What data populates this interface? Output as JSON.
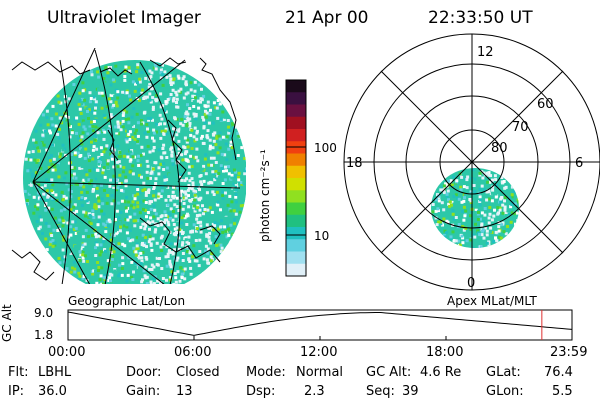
{
  "header": {
    "instrument": "Ultraviolet Imager",
    "date": "21 Apr 00",
    "time": "22:33:50 UT"
  },
  "colorbar": {
    "unit_label": "photon cm⁻²s⁻¹",
    "ticks": [
      "100",
      "10"
    ],
    "colors": [
      "#1a0a1a",
      "#3a1040",
      "#6a1040",
      "#a01020",
      "#d02020",
      "#f04010",
      "#f08000",
      "#f0c000",
      "#d0e000",
      "#90e020",
      "#40d040",
      "#20c080",
      "#20c0c0",
      "#60d0e0",
      "#a0e0f0",
      "#e0f0f8"
    ]
  },
  "polar": {
    "mlt_labels": {
      "top": "12",
      "left": "18",
      "right": "6",
      "bottom": "0"
    },
    "lat_labels": [
      "60",
      "70",
      "80"
    ]
  },
  "maps": {
    "left_caption": "Geographic Lat/Lon",
    "right_caption": "Apex MLat/MLT"
  },
  "timeline": {
    "axis_label": "GC Alt",
    "y_ticks": [
      "9.0",
      "1.8"
    ],
    "x_ticks": [
      "00:00",
      "06:00",
      "12:00",
      "18:00",
      "23:59"
    ],
    "marker_color": "#e03030"
  },
  "info": {
    "filter": {
      "label": "Flt:",
      "value": "LBHL"
    },
    "ip": {
      "label": "IP:",
      "value": "36.0"
    },
    "door": {
      "label": "Door:",
      "value": "Closed"
    },
    "gain": {
      "label": "Gain:",
      "value": "13"
    },
    "mode": {
      "label": "Mode:",
      "value": "Normal"
    },
    "dsp": {
      "label": "Dsp:",
      "value": "2.3"
    },
    "gc_alt": {
      "label": "GC Alt:",
      "value": "4.6 Re"
    },
    "seq": {
      "label": "Seq:",
      "value": "39"
    },
    "glat": {
      "label": "GLat:",
      "value": "76.4"
    },
    "glon": {
      "label": "GLon:",
      "value": "5.5"
    }
  }
}
